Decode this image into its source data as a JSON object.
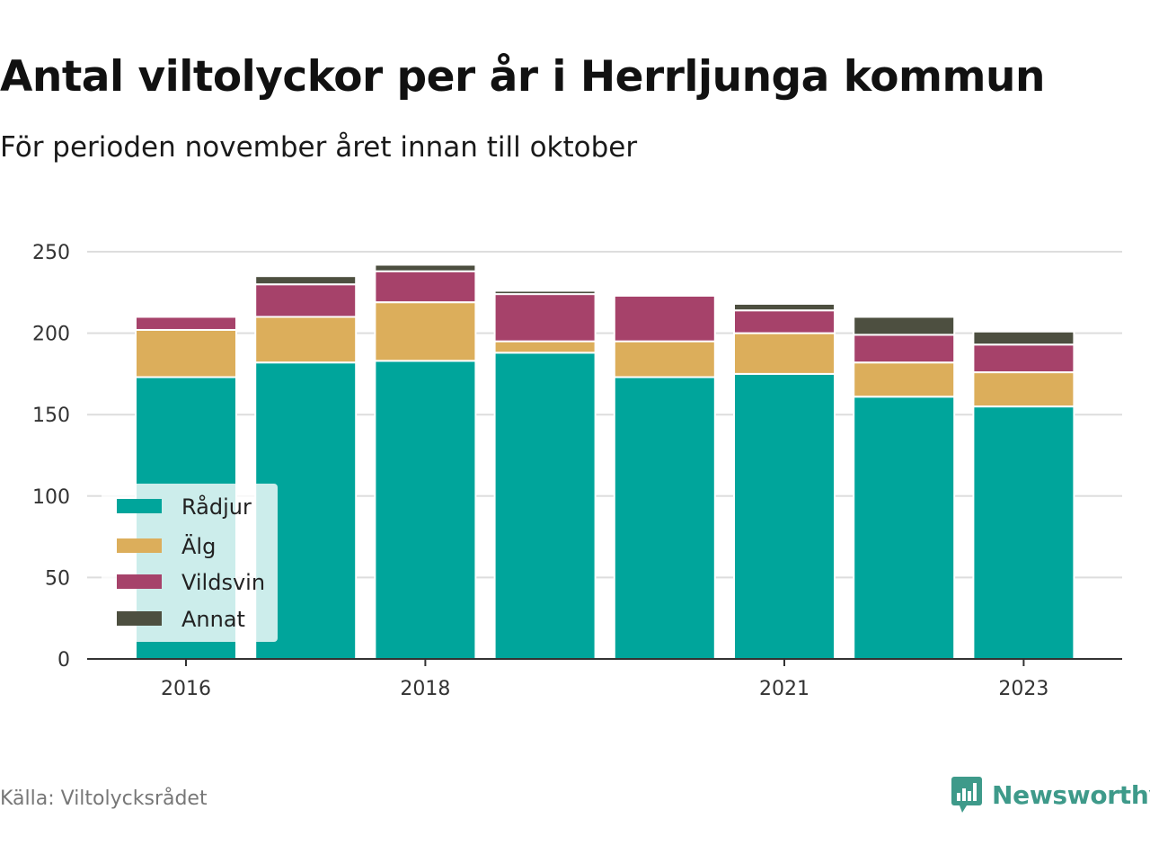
{
  "title": "Antal viltolyckor per år i Herrljunga kommun",
  "subtitle": "För perioden november året innan till oktober",
  "source": "Källa: Viltolycksrådet",
  "brand": "Newsworthy",
  "colors": {
    "Rådjur": "#00a59b",
    "Älg": "#dcae5b",
    "Vildsvin": "#a6426a",
    "Annat": "#4d4f40",
    "grid": "#dddddd",
    "brand": "#3e9a8a"
  },
  "chart_data": {
    "type": "bar",
    "stacked": true,
    "title": "Antal viltolyckor per år i Herrljunga kommun",
    "subtitle": "För perioden november året innan till oktober",
    "categories": [
      "2016",
      "2017",
      "2018",
      "2019",
      "2020",
      "2021",
      "2022",
      "2023"
    ],
    "x_tick_labels": [
      "2016",
      "2018",
      "2021",
      "2023"
    ],
    "y_ticks": [
      0,
      50,
      100,
      150,
      200,
      250
    ],
    "ylim": [
      0,
      250
    ],
    "grid": true,
    "legend_position": "bottom-left",
    "series": [
      {
        "name": "Rådjur",
        "values": [
          173,
          182,
          183,
          188,
          173,
          175,
          161,
          155
        ]
      },
      {
        "name": "Älg",
        "values": [
          29,
          28,
          36,
          7,
          22,
          25,
          21,
          21
        ]
      },
      {
        "name": "Vildsvin",
        "values": [
          8,
          20,
          19,
          29,
          28,
          14,
          17,
          17
        ]
      },
      {
        "name": "Annat",
        "values": [
          0,
          5,
          4,
          2,
          1,
          4,
          11,
          8
        ]
      }
    ]
  }
}
